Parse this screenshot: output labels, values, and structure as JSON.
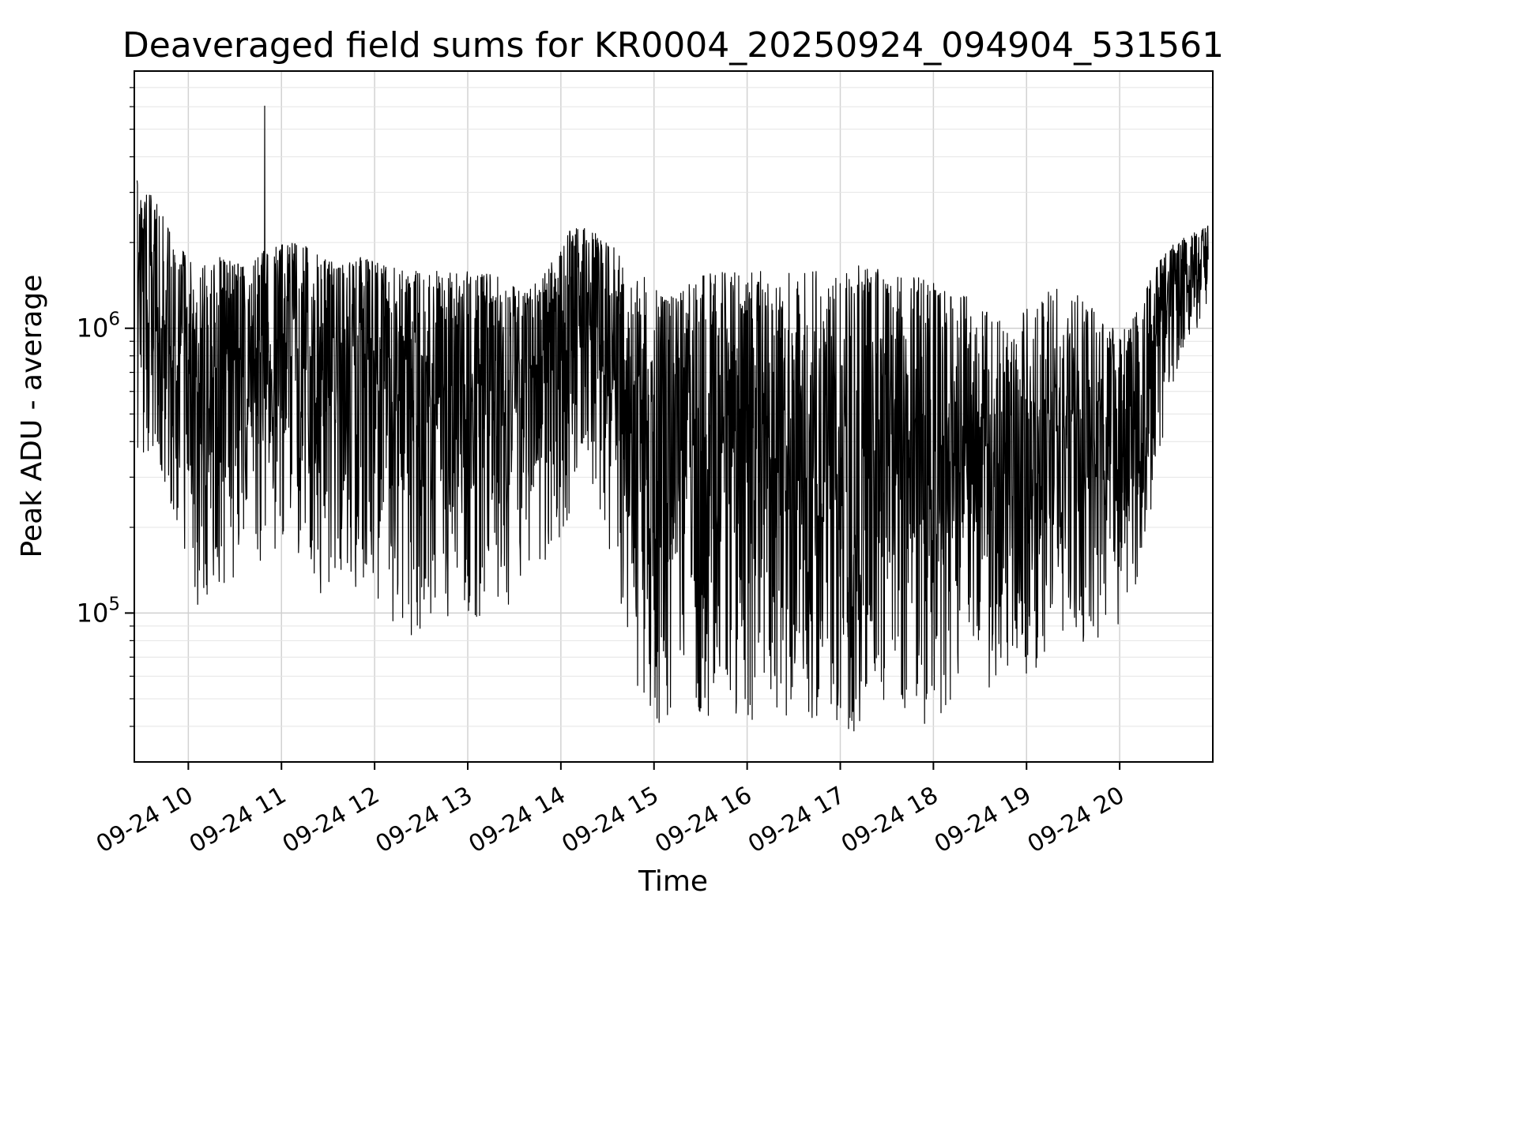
{
  "chart_data": {
    "type": "line",
    "title": "Deaveraged field sums for KR0004_20250924_094904_531561",
    "xlabel": "Time",
    "ylabel": "Peak ADU - average",
    "line_color": "#000000",
    "background_color": "#ffffff",
    "grid": "on",
    "legend": "none",
    "y_scale": "log",
    "y_range": [
      30000,
      8000000
    ],
    "y_ticks": [
      {
        "label": "10^6",
        "base": "10",
        "exp": "6",
        "value": 1000000
      },
      {
        "label": "10^5",
        "base": "10",
        "exp": "5",
        "value": 100000
      }
    ],
    "x_range_hours": [
      9.42,
      21.0
    ],
    "x_data_range_hours": [
      9.45,
      20.95
    ],
    "x_ticks": [
      {
        "label": "09-24 10",
        "hour": 10
      },
      {
        "label": "09-24 11",
        "hour": 11
      },
      {
        "label": "09-24 12",
        "hour": 12
      },
      {
        "label": "09-24 13",
        "hour": 13
      },
      {
        "label": "09-24 14",
        "hour": 14
      },
      {
        "label": "09-24 15",
        "hour": 15
      },
      {
        "label": "09-24 16",
        "hour": 16
      },
      {
        "label": "09-24 17",
        "hour": 17
      },
      {
        "label": "09-24 18",
        "hour": 18
      },
      {
        "label": "09-24 19",
        "hour": 19
      },
      {
        "label": "09-24 20",
        "hour": 20
      }
    ],
    "envelope_format": [
      "time_hours",
      "min_log10_adu",
      "max_log10_adu",
      "top_bias"
    ],
    "envelope": [
      [
        9.45,
        5.55,
        6.52,
        1.5
      ],
      [
        9.65,
        5.5,
        6.45,
        1.6
      ],
      [
        9.85,
        5.35,
        6.3,
        1.7
      ],
      [
        10.1,
        5.0,
        6.22,
        1.8
      ],
      [
        10.35,
        5.05,
        6.25,
        1.8
      ],
      [
        10.6,
        5.15,
        6.22,
        1.8
      ],
      [
        10.85,
        5.2,
        6.28,
        1.8
      ],
      [
        11.1,
        5.25,
        6.3,
        1.8
      ],
      [
        11.35,
        5.05,
        6.28,
        1.8
      ],
      [
        11.6,
        5.05,
        6.22,
        1.8
      ],
      [
        11.85,
        5.1,
        6.25,
        1.8
      ],
      [
        12.1,
        5.0,
        6.22,
        1.8
      ],
      [
        12.35,
        4.9,
        6.2,
        1.75
      ],
      [
        12.6,
        4.95,
        6.2,
        1.7
      ],
      [
        12.85,
        5.0,
        6.2,
        1.7
      ],
      [
        13.1,
        4.95,
        6.2,
        1.7
      ],
      [
        13.35,
        5.0,
        6.18,
        1.7
      ],
      [
        13.6,
        5.0,
        6.12,
        1.7
      ],
      [
        13.85,
        5.1,
        6.2,
        1.7
      ],
      [
        14.1,
        5.35,
        6.35,
        1.6
      ],
      [
        14.3,
        5.5,
        6.35,
        1.5
      ],
      [
        14.5,
        5.25,
        6.3,
        1.5
      ],
      [
        14.7,
        4.9,
        6.25,
        1.4
      ],
      [
        14.9,
        4.65,
        6.18,
        1.3
      ],
      [
        15.1,
        4.6,
        6.12,
        1.3
      ],
      [
        15.35,
        4.7,
        6.15,
        1.3
      ],
      [
        15.6,
        4.6,
        6.2,
        1.3
      ],
      [
        15.85,
        4.65,
        6.2,
        1.3
      ],
      [
        16.1,
        4.6,
        6.2,
        1.25
      ],
      [
        16.35,
        4.65,
        6.2,
        1.25
      ],
      [
        16.6,
        4.6,
        6.2,
        1.25
      ],
      [
        16.85,
        4.6,
        6.2,
        1.25
      ],
      [
        17.1,
        4.55,
        6.22,
        1.25
      ],
      [
        17.35,
        4.7,
        6.22,
        1.3
      ],
      [
        17.6,
        4.6,
        6.18,
        1.3
      ],
      [
        17.85,
        4.55,
        6.18,
        1.3
      ],
      [
        18.1,
        4.65,
        6.15,
        1.3
      ],
      [
        18.35,
        4.72,
        6.12,
        1.3
      ],
      [
        18.6,
        4.7,
        6.05,
        1.25
      ],
      [
        18.85,
        4.72,
        6.02,
        1.25
      ],
      [
        19.1,
        4.8,
        6.1,
        1.25
      ],
      [
        19.35,
        4.88,
        6.15,
        1.3
      ],
      [
        19.6,
        4.85,
        6.12,
        1.3
      ],
      [
        19.85,
        4.9,
        6.0,
        1.35
      ],
      [
        20.1,
        5.0,
        6.0,
        1.45
      ],
      [
        20.3,
        5.25,
        6.15,
        1.55
      ],
      [
        20.5,
        5.7,
        6.28,
        1.6
      ],
      [
        20.7,
        5.95,
        6.32,
        1.6
      ],
      [
        20.95,
        6.02,
        6.36,
        1.6
      ]
    ],
    "spikes": [
      {
        "t": 10.82,
        "log10": 6.78
      }
    ],
    "n_samples": 3200,
    "seed": 7
  }
}
